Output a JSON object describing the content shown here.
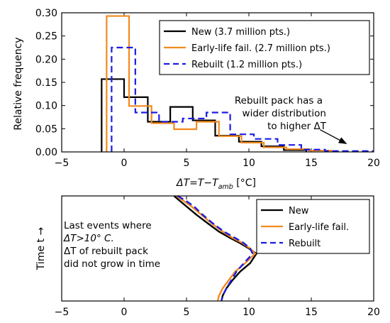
{
  "chart_data": [
    {
      "type": "histogram",
      "xlabel": "ΔT=T−T",
      "xlabel_sub": "amb",
      "xlabel_unit": " [°C]",
      "ylabel": "Relative frequency",
      "xlim": [
        -5,
        20
      ],
      "ylim": [
        0,
        0.3
      ],
      "xticks": [
        "−5",
        "0",
        "5",
        "10",
        "15",
        "20"
      ],
      "xtick_values": [
        -5,
        0,
        5,
        10,
        15,
        20
      ],
      "yticks": [
        "0.00",
        "0.05",
        "0.10",
        "0.15",
        "0.20",
        "0.25",
        "0.30"
      ],
      "ytick_values": [
        0,
        0.05,
        0.1,
        0.15,
        0.2,
        0.25,
        0.3
      ],
      "legend_position": "top-right",
      "series": [
        {
          "name": "New (3.7 million pts.)",
          "color": "#000000",
          "style": "solid",
          "edges": [
            -1.8,
            0,
            1.9,
            3.7,
            5.5,
            7.3,
            9.2,
            11,
            12.8,
            14.6
          ],
          "values": [
            0.157,
            0.118,
            0.065,
            0.097,
            0.068,
            0.035,
            0.022,
            0.012,
            0.004
          ]
        },
        {
          "name": "Early-life fail. (2.7 million pts.)",
          "color": "#f28a1e",
          "style": "solid",
          "edges": [
            -1.4,
            0.4,
            2.2,
            4,
            5.8,
            7.6,
            9.4,
            11.2,
            13,
            14.8,
            16.6
          ],
          "values": [
            0.293,
            0.099,
            0.062,
            0.049,
            0.065,
            0.034,
            0.02,
            0.01,
            0.006,
            0.003
          ]
        },
        {
          "name": "Rebuilt (1.2 million pts.)",
          "color": "#1c1ce6",
          "style": "dashed",
          "edges": [
            -1,
            0.9,
            2.8,
            4.7,
            6.6,
            8.5,
            10.4,
            12.3,
            14.2,
            16.1,
            18,
            19.9
          ],
          "values": [
            0.225,
            0.085,
            0.065,
            0.072,
            0.085,
            0.038,
            0.028,
            0.015,
            0.005,
            0.002,
            0.002
          ]
        }
      ],
      "annotation": {
        "lines": [
          "Rebuilt pack has a",
          "wider distribution",
          "to higher ΔT"
        ],
        "arrow_to": [
          17.8,
          0.018
        ],
        "arrow_from": [
          15.7,
          0.048
        ]
      }
    },
    {
      "type": "line",
      "xlim": [
        -5,
        20
      ],
      "xticks": [
        "−5",
        "0",
        "5",
        "10",
        "15",
        "20"
      ],
      "xtick_values": [
        -5,
        0,
        5,
        10,
        15,
        20
      ],
      "ylabel": "Time t →",
      "ytick_values": [],
      "legend_position": "top-right",
      "series": [
        {
          "name": "New",
          "color": "#000000",
          "style": "solid",
          "x": [
            4.0,
            4.5,
            5.0,
            5.8,
            6.7,
            7.6,
            8.5,
            9.3,
            10.0,
            10.6,
            10.1,
            9.3,
            8.7,
            8.2,
            7.9,
            7.8
          ],
          "y": [
            1.0,
            0.95,
            0.9,
            0.82,
            0.74,
            0.66,
            0.6,
            0.55,
            0.5,
            0.45,
            0.36,
            0.28,
            0.2,
            0.12,
            0.05,
            0.0
          ]
        },
        {
          "name": "Early-life fail.",
          "color": "#f28a1e",
          "style": "solid",
          "x": [
            4.2,
            4.8,
            5.4,
            6.2,
            7.0,
            7.9,
            8.7,
            9.5,
            10.1,
            10.5,
            9.7,
            8.9,
            8.4,
            7.9,
            7.6,
            7.5
          ],
          "y": [
            1.0,
            0.95,
            0.9,
            0.82,
            0.74,
            0.66,
            0.6,
            0.55,
            0.5,
            0.45,
            0.36,
            0.28,
            0.2,
            0.12,
            0.05,
            0.0
          ]
        },
        {
          "name": "Rebuilt",
          "color": "#1c1ce6",
          "style": "dashed",
          "x": [
            4.3,
            5.0,
            5.6,
            6.3,
            7.1,
            8.0,
            8.9,
            9.6,
            10.1,
            10.3,
            9.6,
            9.0,
            8.6,
            8.2,
            7.9,
            7.8
          ],
          "y": [
            1.0,
            0.95,
            0.9,
            0.82,
            0.74,
            0.66,
            0.6,
            0.55,
            0.5,
            0.45,
            0.36,
            0.28,
            0.2,
            0.12,
            0.05,
            0.0
          ]
        }
      ],
      "annotation": {
        "lines": [
          "Last events where",
          "ΔT>10° C.",
          "ΔT of rebuilt pack",
          " did not grow in time"
        ]
      }
    }
  ]
}
